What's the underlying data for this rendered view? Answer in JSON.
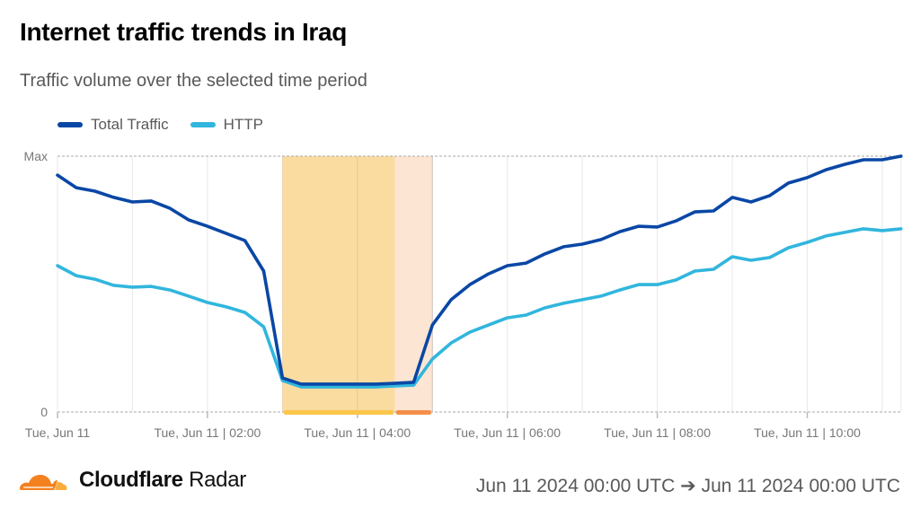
{
  "header": {
    "title": "Internet traffic trends in Iraq",
    "subtitle": "Traffic volume over the selected time period"
  },
  "footer": {
    "brand_bold": "Cloudflare",
    "brand_light": "Radar",
    "date_range": "Jun 11 2024 00:00 UTC ➔ Jun 11 2024 00:00 UTC",
    "logo_icon": "cloudflare-cloud-icon"
  },
  "colors": {
    "total": "#0a47a5",
    "http": "#31b6dd",
    "outage_primary_fill": "#fbdca0",
    "outage_secondary_fill": "#fde5d3",
    "outage_primary_bar": "#fcc64a",
    "outage_secondary_bar": "#f4904a",
    "logo_dark": "#f48120",
    "logo_light": "#faad3f"
  },
  "chart_data": {
    "type": "line",
    "title": "Internet traffic trends in Iraq",
    "subtitle": "Traffic volume over the selected time period",
    "xlabel": "",
    "ylabel": "",
    "y_tick_labels": [
      "0",
      "Max"
    ],
    "ylim": [
      0,
      100
    ],
    "x_interval_minutes": 15,
    "x_start": "Tue, Jun 11 00:00",
    "x_count": 46,
    "x_tick_labels": [
      {
        "hour": 0,
        "label": "Tue, Jun 11"
      },
      {
        "hour": 2,
        "label": "Tue, Jun 11 | 02:00"
      },
      {
        "hour": 4,
        "label": "Tue, Jun 11 | 04:00"
      },
      {
        "hour": 6,
        "label": "Tue, Jun 11 | 06:00"
      },
      {
        "hour": 8,
        "label": "Tue, Jun 11 | 08:00"
      },
      {
        "hour": 10,
        "label": "Tue, Jun 11 | 10:00"
      }
    ],
    "grid": true,
    "legend_position": "top-left",
    "series": [
      {
        "name": "Total Traffic",
        "color": "#0a47a5",
        "values": [
          92.6,
          87.7,
          86.3,
          83.9,
          82.1,
          82.5,
          79.6,
          75.1,
          72.6,
          69.8,
          67.0,
          55.1,
          13.3,
          10.9,
          10.9,
          10.9,
          10.9,
          10.9,
          11.2,
          11.6,
          34.0,
          43.9,
          49.8,
          54.0,
          57.2,
          58.2,
          61.8,
          64.6,
          65.6,
          67.4,
          70.5,
          72.6,
          72.3,
          74.7,
          78.2,
          78.6,
          83.9,
          82.1,
          84.6,
          89.5,
          91.6,
          94.7,
          96.8,
          98.6,
          98.6,
          100.0
        ]
      },
      {
        "name": "HTTP",
        "color": "#31b6dd",
        "values": [
          57.2,
          53.3,
          51.9,
          49.5,
          48.8,
          49.1,
          47.7,
          45.3,
          42.8,
          41.1,
          38.9,
          33.3,
          12.3,
          9.8,
          9.8,
          9.8,
          9.8,
          9.8,
          10.2,
          10.5,
          20.7,
          27.0,
          31.2,
          34.0,
          36.8,
          37.9,
          40.7,
          42.5,
          43.9,
          45.3,
          47.7,
          49.8,
          49.8,
          51.6,
          55.1,
          55.8,
          60.7,
          59.3,
          60.4,
          64.2,
          66.3,
          68.8,
          70.2,
          71.6,
          70.9,
          71.6
        ]
      }
    ],
    "annotations": [
      {
        "type": "outage",
        "start_hour": 3.0,
        "end_hour": 4.5,
        "style": "primary"
      },
      {
        "type": "outage",
        "start_hour": 4.5,
        "end_hour": 5.0,
        "style": "secondary"
      }
    ]
  }
}
